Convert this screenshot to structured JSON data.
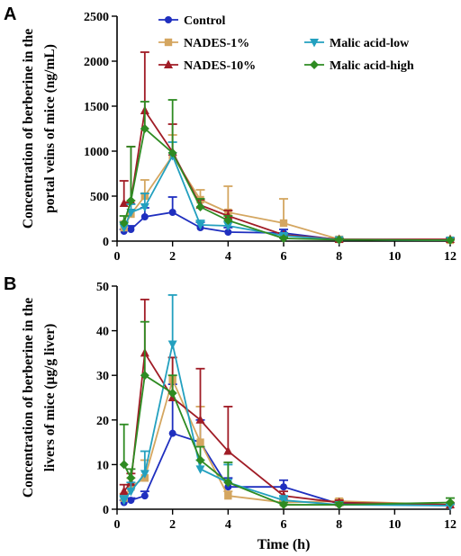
{
  "chart_data": [
    {
      "type": "line",
      "panel_label": "A",
      "ylabel_line1": "Concentration of berberine in the",
      "ylabel_line2": "portal veins of mice (ng/mL)",
      "xlabel": "",
      "xlim": [
        0,
        12
      ],
      "ylim": [
        0,
        2500
      ],
      "xticks": [
        0,
        2,
        4,
        6,
        8,
        10,
        12
      ],
      "yticks": [
        0,
        500,
        1000,
        1500,
        2000,
        2500
      ],
      "x": [
        0.25,
        0.5,
        1,
        2,
        3,
        4,
        6,
        8,
        12
      ],
      "legend": "top-right",
      "series": [
        {
          "name": "Control",
          "color": "#1f2fbf",
          "marker": "circle",
          "values": [
            110,
            130,
            270,
            320,
            150,
            100,
            90,
            15,
            10
          ],
          "err": [
            20,
            40,
            100,
            170,
            60,
            50,
            40,
            10,
            5
          ]
        },
        {
          "name": "NADES-1%",
          "color": "#d4a660",
          "marker": "square",
          "values": [
            150,
            300,
            500,
            950,
            460,
            320,
            200,
            20,
            10
          ],
          "err": [
            70,
            150,
            180,
            230,
            110,
            290,
            270,
            15,
            10
          ]
        },
        {
          "name": "NADES-10%",
          "color": "#a01c26",
          "marker": "triangle-up",
          "values": [
            420,
            450,
            1450,
            990,
            400,
            280,
            70,
            20,
            20
          ],
          "err": [
            250,
            600,
            650,
            310,
            60,
            60,
            20,
            10,
            10
          ]
        },
        {
          "name": "Malic acid-low",
          "color": "#23a0bf",
          "marker": "triangle-down",
          "values": [
            150,
            320,
            380,
            950,
            180,
            170,
            60,
            15,
            10
          ],
          "err": [
            60,
            90,
            150,
            150,
            50,
            50,
            20,
            10,
            5
          ]
        },
        {
          "name": "Malic acid-high",
          "color": "#2e8b22",
          "marker": "diamond",
          "values": [
            200,
            450,
            1250,
            980,
            380,
            230,
            30,
            15,
            10
          ],
          "err": [
            80,
            600,
            300,
            590,
            90,
            50,
            15,
            10,
            5
          ]
        }
      ]
    },
    {
      "type": "line",
      "panel_label": "B",
      "ylabel_line1": "Concentration of berberine in the",
      "ylabel_line2": "livers of mice (μg/g liver)",
      "xlabel": "Time (h)",
      "xlim": [
        0,
        12
      ],
      "ylim": [
        0,
        50
      ],
      "xticks": [
        0,
        2,
        4,
        6,
        8,
        10,
        12
      ],
      "yticks": [
        0,
        10,
        20,
        30,
        40,
        50
      ],
      "x": [
        0.25,
        0.5,
        1,
        2,
        3,
        4,
        6,
        8,
        12
      ],
      "series": [
        {
          "name": "Control",
          "color": "#1f2fbf",
          "marker": "circle",
          "values": [
            1.5,
            2,
            3,
            17,
            15,
            5,
            5,
            1.2,
            0.8
          ],
          "err": [
            0.5,
            0.5,
            1,
            11,
            5,
            2,
            1.5,
            0.5,
            0.3
          ]
        },
        {
          "name": "NADES-1%",
          "color": "#d4a660",
          "marker": "square",
          "values": [
            2.5,
            5,
            7,
            29,
            15,
            3,
            1.5,
            1.8,
            1
          ],
          "err": [
            1,
            2,
            4,
            5,
            8,
            1,
            0.5,
            0.5,
            0.3
          ]
        },
        {
          "name": "NADES-10%",
          "color": "#a01c26",
          "marker": "triangle-up",
          "values": [
            4,
            6,
            35,
            25,
            20,
            13,
            3,
            1.5,
            1
          ],
          "err": [
            1.5,
            2,
            12,
            9,
            11.5,
            10,
            1,
            0.5,
            0.3
          ]
        },
        {
          "name": "Malic acid-low",
          "color": "#23a0bf",
          "marker": "triangle-down",
          "values": [
            2,
            4,
            8,
            37,
            9,
            6,
            2,
            1,
            0.8
          ],
          "err": [
            1,
            2,
            5,
            11,
            2,
            4,
            1,
            0.5,
            0.3
          ]
        },
        {
          "name": "Malic acid-high",
          "color": "#2e8b22",
          "marker": "diamond",
          "values": [
            10,
            7,
            30,
            26,
            11,
            6,
            1,
            1,
            1.5
          ],
          "err": [
            9,
            2,
            12,
            4,
            3,
            4.5,
            0.5,
            0.5,
            1
          ]
        }
      ]
    }
  ]
}
